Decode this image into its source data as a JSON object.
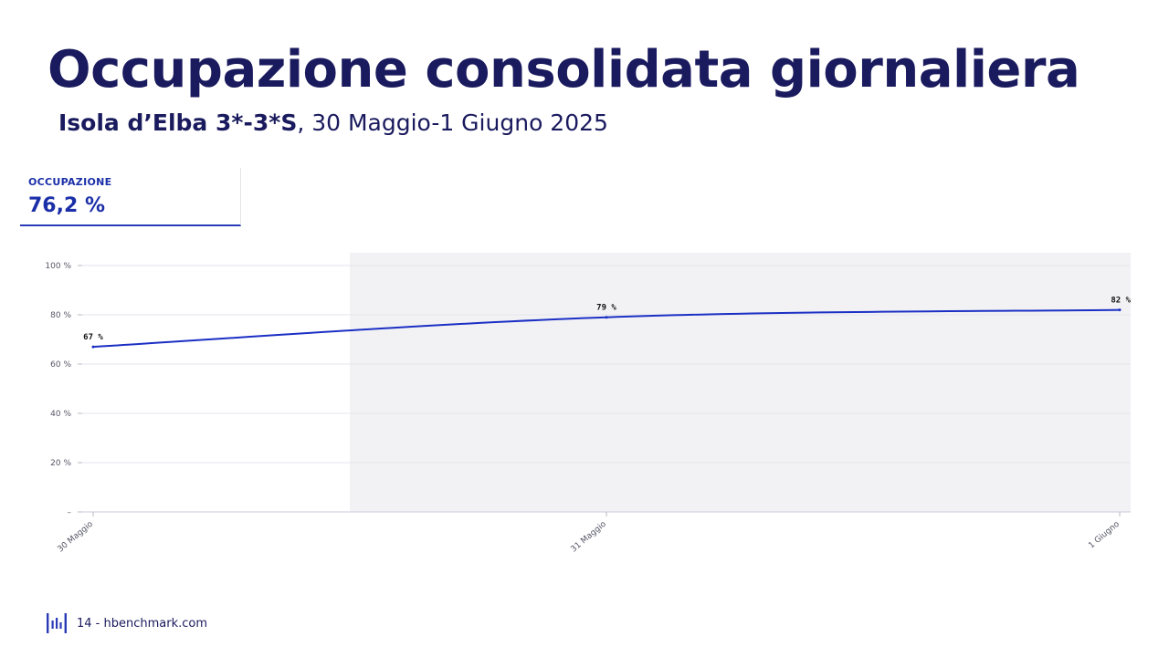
{
  "header": {
    "title": "Occupazione consolidata giornaliera",
    "subtitle_bold": "Isola d’Elba 3*-3*S",
    "subtitle_rest": ", 30 Maggio-1 Giugno 2025"
  },
  "kpi": {
    "label": "OCCUPAZIONE",
    "value": "76,2 %"
  },
  "chart_data": {
    "type": "line",
    "categories": [
      "30 Maggio",
      "31 Maggio",
      "1 Giugno"
    ],
    "series": [
      {
        "values": [
          67,
          79,
          82
        ],
        "data_labels": [
          "67 %",
          "79 %",
          "82 %"
        ],
        "color": "#1b2fc4"
      }
    ],
    "y_ticks": [
      0,
      20,
      40,
      60,
      80,
      100
    ],
    "y_tick_labels": [
      "–",
      "20 %",
      "40 %",
      "60 %",
      "80 %",
      "100 %"
    ],
    "ylim": [
      0,
      100
    ],
    "grid": true,
    "shaded_band": {
      "from": 0.5,
      "to": 2.0,
      "color": "#f2f2f4"
    },
    "title": "",
    "xlabel": "",
    "ylabel": ""
  },
  "footer": {
    "text": "14 - hbenchmark.com",
    "logo_icon": "hbenchmark-logo-icon",
    "brand_color": "#2b3bb8"
  }
}
